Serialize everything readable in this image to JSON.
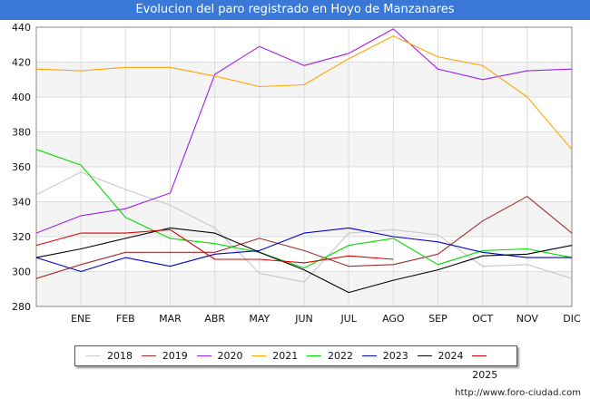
{
  "title": "Evolucion del paro registrado en Hoyo de Manzanares",
  "footer": "http://www.foro-ciudad.com",
  "chart_data": {
    "type": "line",
    "title": "Evolucion del paro registrado en Hoyo de Manzanares",
    "x_labels": [
      "",
      "ENE",
      "FEB",
      "MAR",
      "ABR",
      "MAY",
      "JUN",
      "JUL",
      "AGO",
      "SEP",
      "OCT",
      "NOV",
      "DIC"
    ],
    "ylim": [
      280,
      440
    ],
    "y_ticks": [
      280,
      300,
      320,
      340,
      360,
      380,
      400,
      420,
      440
    ],
    "grid": true,
    "legend_position": "bottom",
    "series": [
      {
        "name": "2018",
        "color": "#c8c8c8",
        "values": [
          344,
          357,
          347,
          338,
          325,
          299,
          294,
          322,
          324,
          321,
          303,
          304,
          296
        ]
      },
      {
        "name": "2019",
        "color": "#a52a2a",
        "values": [
          296,
          304,
          311,
          311,
          311,
          319,
          312,
          303,
          304,
          310,
          329,
          343,
          322
        ]
      },
      {
        "name": "2020",
        "color": "#a020f0",
        "values": [
          322,
          332,
          336,
          345,
          413,
          429,
          418,
          425,
          439,
          416,
          410,
          415,
          416
        ]
      },
      {
        "name": "2021",
        "color": "#ffa500",
        "values": [
          416,
          415,
          417,
          417,
          412,
          406,
          407,
          422,
          435,
          423,
          418,
          400,
          370
        ]
      },
      {
        "name": "2022",
        "color": "#00dd00",
        "values": [
          370,
          361,
          331,
          319,
          316,
          311,
          302,
          315,
          319,
          304,
          312,
          313,
          308
        ]
      },
      {
        "name": "2023",
        "color": "#0000cc",
        "values": [
          308,
          300,
          308,
          303,
          310,
          312,
          322,
          325,
          320,
          317,
          311,
          308,
          308
        ]
      },
      {
        "name": "2024",
        "color": "#000000",
        "values": [
          308,
          313,
          319,
          325,
          322,
          311,
          301,
          288,
          295,
          301,
          309,
          310,
          315
        ]
      },
      {
        "name": "2025",
        "color": "#dd0000",
        "values": [
          315,
          322,
          322,
          324,
          307,
          307,
          305,
          309,
          307,
          null,
          null,
          null,
          null
        ]
      }
    ]
  }
}
